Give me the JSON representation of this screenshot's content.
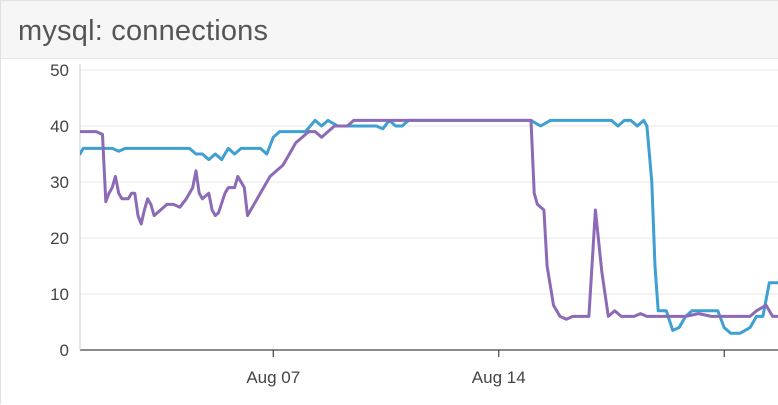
{
  "panel": {
    "title": "mysql: connections"
  },
  "chart_data": {
    "type": "line",
    "title": "mysql: connections",
    "xlabel": "",
    "ylabel": "",
    "ylim": [
      0,
      50
    ],
    "y_ticks": [
      0,
      10,
      20,
      30,
      40,
      50
    ],
    "x_range_days": [
      1.0,
      22.7
    ],
    "x_ticks": [
      {
        "label": "Aug 07",
        "day": 7
      },
      {
        "label": "Aug 14",
        "day": 14
      },
      {
        "label": "",
        "day": 21
      }
    ],
    "grid": true,
    "legend": "none",
    "series": [
      {
        "color": "#3d9fd2",
        "points": [
          [
            1.0,
            35
          ],
          [
            1.1,
            36
          ],
          [
            1.5,
            36
          ],
          [
            1.8,
            36
          ],
          [
            2.0,
            36
          ],
          [
            2.2,
            35.5
          ],
          [
            2.4,
            36
          ],
          [
            2.6,
            36
          ],
          [
            3.0,
            36
          ],
          [
            3.5,
            36
          ],
          [
            4.0,
            36
          ],
          [
            4.4,
            36
          ],
          [
            4.6,
            35
          ],
          [
            4.8,
            35
          ],
          [
            5.0,
            34
          ],
          [
            5.2,
            35
          ],
          [
            5.4,
            34
          ],
          [
            5.6,
            36
          ],
          [
            5.8,
            35
          ],
          [
            6.0,
            36
          ],
          [
            6.4,
            36
          ],
          [
            6.6,
            36
          ],
          [
            6.8,
            35
          ],
          [
            7.0,
            38
          ],
          [
            7.2,
            39
          ],
          [
            7.5,
            39
          ],
          [
            7.8,
            39
          ],
          [
            8.0,
            39
          ],
          [
            8.3,
            41
          ],
          [
            8.5,
            40
          ],
          [
            8.7,
            41
          ],
          [
            9.0,
            40
          ],
          [
            9.3,
            40
          ],
          [
            9.8,
            40
          ],
          [
            10.2,
            40
          ],
          [
            10.4,
            39.5
          ],
          [
            10.6,
            41
          ],
          [
            10.8,
            40
          ],
          [
            11.0,
            40
          ],
          [
            11.2,
            41
          ],
          [
            11.5,
            41
          ],
          [
            12.5,
            41
          ],
          [
            13.5,
            41
          ],
          [
            14.5,
            41
          ],
          [
            15.0,
            41
          ],
          [
            15.3,
            40
          ],
          [
            15.6,
            41
          ],
          [
            15.9,
            41
          ],
          [
            16.3,
            41
          ],
          [
            16.8,
            41
          ],
          [
            17.2,
            41
          ],
          [
            17.5,
            41
          ],
          [
            17.7,
            40
          ],
          [
            17.9,
            41
          ],
          [
            18.1,
            41
          ],
          [
            18.3,
            40
          ],
          [
            18.5,
            41
          ],
          [
            18.6,
            40
          ],
          [
            18.75,
            30
          ],
          [
            18.85,
            15
          ],
          [
            18.95,
            7
          ],
          [
            19.2,
            7
          ],
          [
            19.4,
            3.5
          ],
          [
            19.6,
            4
          ],
          [
            19.8,
            6
          ],
          [
            20.0,
            7
          ],
          [
            20.2,
            7
          ],
          [
            20.4,
            7
          ],
          [
            20.6,
            7
          ],
          [
            20.8,
            7
          ],
          [
            21.0,
            4
          ],
          [
            21.2,
            3
          ],
          [
            21.5,
            3
          ],
          [
            21.8,
            4
          ],
          [
            22.0,
            6
          ],
          [
            22.2,
            6
          ],
          [
            22.4,
            12
          ],
          [
            22.7,
            12
          ]
        ]
      },
      {
        "color": "#8c6ab5",
        "points": [
          [
            1.0,
            39
          ],
          [
            1.2,
            39
          ],
          [
            1.5,
            39
          ],
          [
            1.7,
            38.5
          ],
          [
            1.8,
            26.5
          ],
          [
            1.9,
            28
          ],
          [
            2.0,
            29
          ],
          [
            2.1,
            31
          ],
          [
            2.2,
            28
          ],
          [
            2.3,
            27
          ],
          [
            2.5,
            27
          ],
          [
            2.6,
            28
          ],
          [
            2.7,
            28
          ],
          [
            2.8,
            24
          ],
          [
            2.9,
            22.5
          ],
          [
            3.0,
            25
          ],
          [
            3.1,
            27
          ],
          [
            3.2,
            26
          ],
          [
            3.3,
            24
          ],
          [
            3.5,
            25
          ],
          [
            3.7,
            26
          ],
          [
            3.9,
            26
          ],
          [
            4.1,
            25.5
          ],
          [
            4.3,
            27
          ],
          [
            4.5,
            29
          ],
          [
            4.6,
            32
          ],
          [
            4.7,
            28
          ],
          [
            4.8,
            27
          ],
          [
            5.0,
            28
          ],
          [
            5.1,
            25
          ],
          [
            5.2,
            24
          ],
          [
            5.3,
            24.5
          ],
          [
            5.5,
            28
          ],
          [
            5.6,
            29
          ],
          [
            5.8,
            29
          ],
          [
            5.9,
            31
          ],
          [
            6.0,
            30
          ],
          [
            6.1,
            29
          ],
          [
            6.2,
            24
          ],
          [
            6.3,
            25
          ],
          [
            6.5,
            27
          ],
          [
            6.7,
            29
          ],
          [
            6.9,
            31
          ],
          [
            7.1,
            32
          ],
          [
            7.3,
            33
          ],
          [
            7.5,
            35
          ],
          [
            7.7,
            37
          ],
          [
            7.9,
            38
          ],
          [
            8.1,
            39
          ],
          [
            8.3,
            39
          ],
          [
            8.5,
            38
          ],
          [
            8.7,
            39
          ],
          [
            8.9,
            40
          ],
          [
            9.1,
            40
          ],
          [
            9.3,
            40
          ],
          [
            9.5,
            41
          ],
          [
            10.0,
            41
          ],
          [
            11.0,
            41
          ],
          [
            12.0,
            41
          ],
          [
            13.0,
            41
          ],
          [
            14.0,
            41
          ],
          [
            14.8,
            41
          ],
          [
            15.0,
            41
          ],
          [
            15.1,
            28
          ],
          [
            15.2,
            26
          ],
          [
            15.4,
            25
          ],
          [
            15.5,
            15
          ],
          [
            15.7,
            8
          ],
          [
            15.9,
            6
          ],
          [
            16.1,
            5.5
          ],
          [
            16.3,
            6
          ],
          [
            16.6,
            6
          ],
          [
            16.8,
            6
          ],
          [
            17.0,
            25
          ],
          [
            17.2,
            14
          ],
          [
            17.4,
            6
          ],
          [
            17.6,
            7
          ],
          [
            17.8,
            6
          ],
          [
            18.0,
            6
          ],
          [
            18.2,
            6
          ],
          [
            18.4,
            6.5
          ],
          [
            18.6,
            6
          ],
          [
            18.8,
            6
          ],
          [
            19.0,
            6
          ],
          [
            19.4,
            6
          ],
          [
            19.8,
            6
          ],
          [
            20.2,
            6.5
          ],
          [
            20.6,
            6
          ],
          [
            21.0,
            6
          ],
          [
            21.4,
            6
          ],
          [
            21.8,
            6
          ],
          [
            22.0,
            7
          ],
          [
            22.3,
            8
          ],
          [
            22.5,
            6
          ],
          [
            22.7,
            6
          ]
        ]
      }
    ]
  }
}
